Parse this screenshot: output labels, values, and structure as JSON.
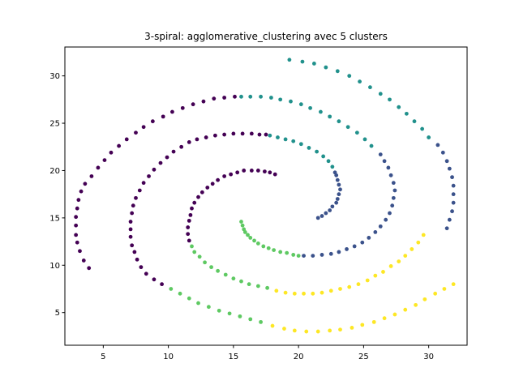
{
  "chart_data": {
    "type": "scatter",
    "title": "3-spiral: agglomerative_clustering avec 5 clusters",
    "xlabel": "",
    "ylabel": "",
    "xlim": [
      2.05,
      32.95
    ],
    "ylim": [
      1.55,
      33.05
    ],
    "xticks": [
      5,
      10,
      15,
      20,
      25,
      30
    ],
    "yticks": [
      5,
      10,
      15,
      20,
      25,
      30
    ],
    "grid": false,
    "legend": "none",
    "series": [
      {
        "color": "#440154",
        "points": [
          [
            3.9,
            9.7
          ],
          [
            3.5,
            10.5
          ],
          [
            3.2,
            11.5
          ],
          [
            3.0,
            12.4
          ],
          [
            2.9,
            13.2
          ],
          [
            2.9,
            14.2
          ],
          [
            2.9,
            15.1
          ],
          [
            3.0,
            16.0
          ],
          [
            3.1,
            16.9
          ],
          [
            3.3,
            17.8
          ],
          [
            3.6,
            18.6
          ],
          [
            4.1,
            19.4
          ],
          [
            4.6,
            20.3
          ],
          [
            5.1,
            21.1
          ],
          [
            5.6,
            21.9
          ],
          [
            6.2,
            22.6
          ],
          [
            6.8,
            23.3
          ],
          [
            7.5,
            24.0
          ],
          [
            8.1,
            24.6
          ],
          [
            8.8,
            25.2
          ],
          [
            9.6,
            25.7
          ],
          [
            10.3,
            26.2
          ],
          [
            11.1,
            26.6
          ],
          [
            11.9,
            27.0
          ],
          [
            12.7,
            27.3
          ],
          [
            13.5,
            27.6
          ],
          [
            14.3,
            27.7
          ],
          [
            15.1,
            27.8
          ],
          [
            7.9,
            9.8
          ],
          [
            8.3,
            9.1
          ],
          [
            8.9,
            8.5
          ],
          [
            9.5,
            8.0
          ],
          [
            7.6,
            10.6
          ],
          [
            7.4,
            11.4
          ],
          [
            7.2,
            12.1
          ],
          [
            7.1,
            13.0
          ],
          [
            7.1,
            13.8
          ],
          [
            7.1,
            14.6
          ],
          [
            7.2,
            15.5
          ],
          [
            7.3,
            16.3
          ],
          [
            7.5,
            17.1
          ],
          [
            7.8,
            17.9
          ],
          [
            8.1,
            18.7
          ],
          [
            8.5,
            19.4
          ],
          [
            8.9,
            20.1
          ],
          [
            9.4,
            20.8
          ],
          [
            9.9,
            21.4
          ],
          [
            10.4,
            22.0
          ],
          [
            11.0,
            22.5
          ],
          [
            11.6,
            23.0
          ],
          [
            12.2,
            23.3
          ],
          [
            12.9,
            23.5
          ],
          [
            13.6,
            23.7
          ],
          [
            14.3,
            23.8
          ],
          [
            15.0,
            23.9
          ],
          [
            15.7,
            23.9
          ],
          [
            16.4,
            23.9
          ],
          [
            17.0,
            23.8
          ],
          [
            17.5,
            23.8
          ],
          [
            11.6,
            12.6
          ],
          [
            11.5,
            13.3
          ],
          [
            11.5,
            14.0
          ],
          [
            11.6,
            14.7
          ],
          [
            11.7,
            15.3
          ],
          [
            11.8,
            16.0
          ],
          [
            12.0,
            16.6
          ],
          [
            12.3,
            17.2
          ],
          [
            12.6,
            17.7
          ],
          [
            13.0,
            18.2
          ],
          [
            13.4,
            18.6
          ],
          [
            13.8,
            19.0
          ],
          [
            14.3,
            19.4
          ],
          [
            14.8,
            19.6
          ],
          [
            15.3,
            19.8
          ],
          [
            15.8,
            20.0
          ],
          [
            16.4,
            20.0
          ],
          [
            16.9,
            20.0
          ],
          [
            17.4,
            19.9
          ],
          [
            17.8,
            19.8
          ],
          [
            18.2,
            19.6
          ]
        ]
      },
      {
        "color": "#3b528b",
        "points": [
          [
            21.5,
            15.0
          ],
          [
            21.8,
            15.2
          ],
          [
            22.1,
            15.5
          ],
          [
            22.4,
            15.8
          ],
          [
            22.6,
            16.2
          ],
          [
            22.9,
            16.6
          ],
          [
            23.0,
            17.0
          ],
          [
            23.1,
            17.5
          ],
          [
            23.2,
            18.0
          ],
          [
            23.1,
            18.5
          ],
          [
            23.0,
            19.0
          ],
          [
            22.9,
            19.5
          ],
          [
            22.8,
            19.8
          ],
          [
            20.4,
            11.0
          ],
          [
            21.1,
            11.0
          ],
          [
            21.8,
            11.1
          ],
          [
            22.5,
            11.2
          ],
          [
            23.1,
            11.4
          ],
          [
            23.7,
            11.7
          ],
          [
            24.3,
            12.0
          ],
          [
            24.9,
            12.4
          ],
          [
            25.4,
            12.9
          ],
          [
            25.9,
            13.5
          ],
          [
            26.3,
            14.1
          ],
          [
            26.7,
            14.8
          ],
          [
            27.0,
            15.5
          ],
          [
            27.2,
            16.3
          ],
          [
            27.3,
            17.1
          ],
          [
            27.4,
            17.9
          ],
          [
            27.3,
            18.7
          ],
          [
            27.1,
            19.5
          ],
          [
            26.9,
            20.3
          ],
          [
            26.6,
            21.0
          ],
          [
            26.3,
            21.7
          ],
          [
            31.4,
            13.9
          ],
          [
            31.6,
            14.8
          ],
          [
            31.8,
            15.7
          ],
          [
            31.9,
            16.6
          ],
          [
            31.9,
            17.5
          ],
          [
            31.9,
            18.4
          ],
          [
            31.8,
            19.3
          ],
          [
            31.6,
            20.2
          ],
          [
            31.4,
            21.0
          ],
          [
            31.1,
            21.9
          ],
          [
            30.7,
            22.7
          ]
        ]
      },
      {
        "color": "#21918c",
        "points": [
          [
            15.6,
            27.8
          ],
          [
            16.3,
            27.8
          ],
          [
            17.1,
            27.8
          ],
          [
            17.9,
            27.7
          ],
          [
            18.6,
            27.5
          ],
          [
            19.4,
            27.3
          ],
          [
            20.2,
            27.0
          ],
          [
            20.9,
            26.6
          ],
          [
            21.7,
            26.2
          ],
          [
            22.4,
            25.7
          ],
          [
            23.1,
            25.2
          ],
          [
            23.8,
            24.6
          ],
          [
            24.5,
            24.0
          ],
          [
            25.1,
            23.3
          ],
          [
            25.6,
            22.6
          ],
          [
            17.8,
            23.7
          ],
          [
            18.4,
            23.5
          ],
          [
            19.0,
            23.3
          ],
          [
            19.6,
            23.1
          ],
          [
            20.2,
            22.8
          ],
          [
            20.8,
            22.4
          ],
          [
            21.4,
            22.0
          ],
          [
            21.9,
            21.5
          ],
          [
            22.3,
            21.0
          ],
          [
            22.6,
            20.4
          ],
          [
            19.3,
            31.7
          ],
          [
            20.3,
            31.5
          ],
          [
            21.2,
            31.3
          ],
          [
            22.1,
            30.9
          ],
          [
            23.0,
            30.5
          ],
          [
            23.9,
            30.0
          ],
          [
            24.7,
            29.4
          ],
          [
            25.5,
            28.8
          ],
          [
            26.3,
            28.1
          ],
          [
            27.0,
            27.5
          ],
          [
            27.7,
            26.7
          ],
          [
            28.3,
            26.0
          ],
          [
            28.9,
            25.2
          ],
          [
            29.5,
            24.4
          ],
          [
            30.0,
            23.5
          ]
        ]
      },
      {
        "color": "#5ec962",
        "points": [
          [
            15.6,
            14.6
          ],
          [
            15.7,
            14.2
          ],
          [
            15.8,
            13.8
          ],
          [
            15.9,
            13.5
          ],
          [
            16.1,
            13.2
          ],
          [
            16.3,
            12.9
          ],
          [
            16.6,
            12.6
          ],
          [
            16.9,
            12.3
          ],
          [
            17.3,
            12.0
          ],
          [
            17.7,
            11.8
          ],
          [
            18.1,
            11.6
          ],
          [
            18.6,
            11.4
          ],
          [
            19.1,
            11.3
          ],
          [
            19.6,
            11.1
          ],
          [
            20.0,
            11.0
          ],
          [
            11.8,
            12.0
          ],
          [
            12.0,
            11.4
          ],
          [
            12.4,
            10.9
          ],
          [
            12.8,
            10.3
          ],
          [
            13.3,
            9.8
          ],
          [
            13.8,
            9.4
          ],
          [
            14.4,
            9.0
          ],
          [
            15.0,
            8.6
          ],
          [
            15.6,
            8.3
          ],
          [
            16.2,
            8.0
          ],
          [
            16.9,
            7.8
          ],
          [
            17.6,
            7.6
          ],
          [
            10.2,
            7.5
          ],
          [
            10.9,
            7.0
          ],
          [
            11.6,
            6.5
          ],
          [
            12.3,
            6.0
          ],
          [
            13.1,
            5.6
          ],
          [
            13.9,
            5.2
          ],
          [
            14.7,
            4.9
          ],
          [
            15.5,
            4.6
          ],
          [
            16.3,
            4.3
          ],
          [
            17.1,
            4.0
          ]
        ]
      },
      {
        "color": "#fde725",
        "points": [
          [
            18.3,
            7.3
          ],
          [
            19.0,
            7.1
          ],
          [
            19.7,
            7.0
          ],
          [
            20.4,
            7.0
          ],
          [
            21.1,
            7.0
          ],
          [
            21.8,
            7.1
          ],
          [
            22.5,
            7.3
          ],
          [
            23.2,
            7.5
          ],
          [
            23.9,
            7.7
          ],
          [
            24.6,
            8.0
          ],
          [
            25.3,
            8.4
          ],
          [
            25.9,
            8.9
          ],
          [
            26.5,
            9.3
          ],
          [
            27.1,
            9.9
          ],
          [
            27.7,
            10.4
          ],
          [
            28.2,
            11.0
          ],
          [
            28.7,
            11.7
          ],
          [
            29.2,
            12.4
          ],
          [
            29.6,
            13.2
          ],
          [
            18.0,
            3.6
          ],
          [
            18.9,
            3.3
          ],
          [
            19.7,
            3.1
          ],
          [
            20.6,
            3.0
          ],
          [
            21.5,
            3.0
          ],
          [
            22.4,
            3.1
          ],
          [
            23.2,
            3.2
          ],
          [
            24.1,
            3.4
          ],
          [
            24.9,
            3.7
          ],
          [
            25.8,
            4.0
          ],
          [
            26.6,
            4.4
          ],
          [
            27.4,
            4.8
          ],
          [
            28.2,
            5.3
          ],
          [
            29.0,
            5.8
          ],
          [
            29.7,
            6.4
          ],
          [
            30.5,
            7.0
          ],
          [
            31.2,
            7.5
          ],
          [
            31.9,
            8.0
          ]
        ]
      }
    ]
  }
}
